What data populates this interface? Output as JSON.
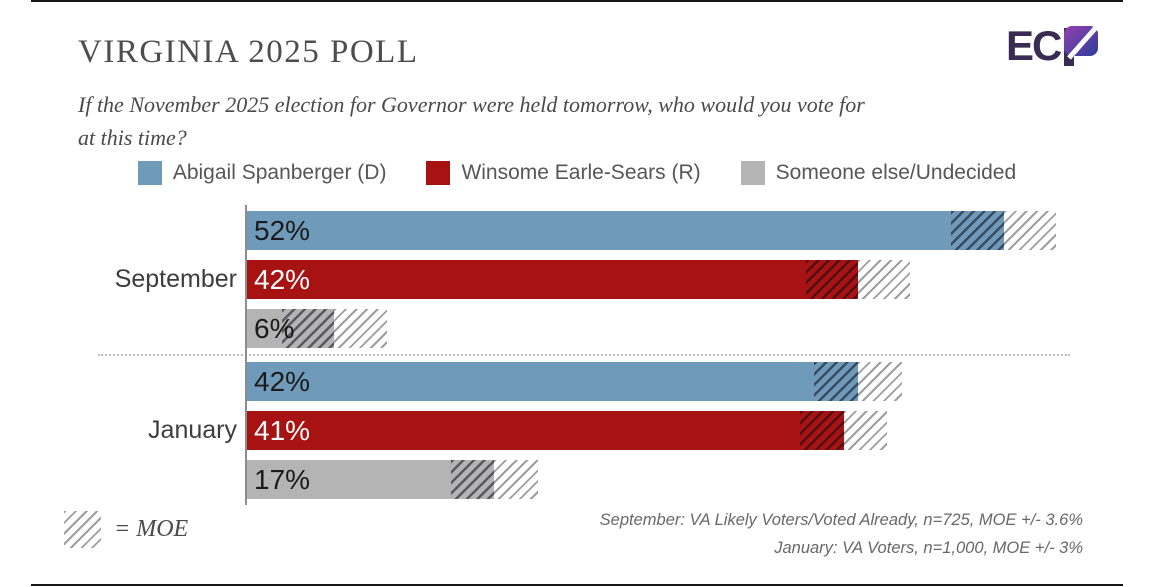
{
  "header": {
    "title": "VIRGINIA 2025 POLL",
    "subtitle_lines": [
      "If the November 2025 election for Governor were held tomorrow, who would you vote for",
      "at this time?"
    ],
    "logo": {
      "full_text": "ECP",
      "plain_letters": "EC",
      "dark_purple": "#3a2b52",
      "gradient_purple": "#9440ad",
      "gradient_blue": "#2c3e9b"
    }
  },
  "legend": [
    {
      "label": "Abigail Spanberger (D)",
      "color": "#6f9aba",
      "value_label_color": "#1b1b1b"
    },
    {
      "label": "Winsome Earle-Sears (R)",
      "color": "#a71212",
      "value_label_color": "#ffffff"
    },
    {
      "label": "Someone else/Undecided",
      "color": "#b4b4b4",
      "value_label_color": "#1b1b1b"
    }
  ],
  "chart_data": {
    "type": "bar",
    "orientation": "horizontal",
    "unit": "%",
    "series": [
      "Abigail Spanberger (D)",
      "Winsome Earle-Sears (R)",
      "Someone else/Undecided"
    ],
    "groups": [
      {
        "category": "September",
        "moe": 3.6,
        "values": [
          52,
          42,
          6
        ]
      },
      {
        "category": "January",
        "moe": 3.0,
        "values": [
          42,
          41,
          17
        ]
      }
    ],
    "xlim": [
      0,
      56
    ],
    "legend_position": "top",
    "grid": false,
    "moe_note": "hatched region = margin of error"
  },
  "moe_legend": {
    "label": "= MOE"
  },
  "footnotes": [
    "September: VA Likely Voters/Voted Already, n=725, MOE +/- 3.6%",
    "January: VA Voters, n=1,000, MOE +/- 3%"
  ]
}
